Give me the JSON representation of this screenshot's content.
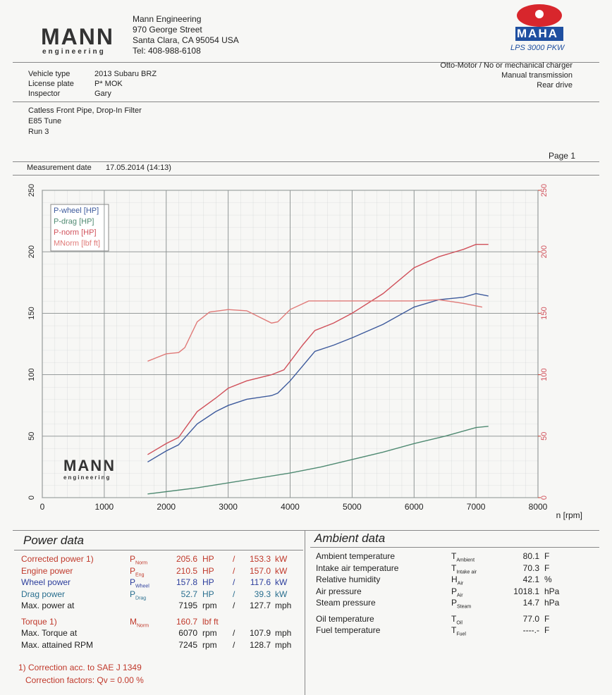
{
  "header": {
    "logo": "MANN",
    "logo_sub": "engineering",
    "company": "Mann Engineering",
    "street": "970 George Street",
    "city": "Santa Clara, CA 95054 USA",
    "phone": "Tel: 408-988-6108",
    "brand": "MAHA",
    "model": "LPS 3000 PKW"
  },
  "vehicle": [
    {
      "label": "Vehicle type",
      "value": "2013 Subaru BRZ"
    },
    {
      "label": "License plate",
      "value": "P* MOK"
    },
    {
      "label": "Inspector",
      "value": "Gary"
    }
  ],
  "drive": [
    "Otto-Motor / No or mechanical charger",
    "Manual transmission",
    "Rear drive"
  ],
  "notes": [
    "Catless Front Pipe, Drop-In Filter",
    "E85 Tune",
    "Run 3"
  ],
  "page": "Page 1",
  "measurement": {
    "label": "Measurement date",
    "date": "17.05.2014 (14:13)"
  },
  "chart_data": {
    "type": "line",
    "x_label": "n [rpm]",
    "xlim": [
      0,
      8000
    ],
    "xticks": [
      0,
      1000,
      2000,
      3000,
      4000,
      5000,
      6000,
      7000,
      8000
    ],
    "ylim": [
      0,
      250
    ],
    "yticks": [
      0,
      50,
      100,
      150,
      200,
      250
    ],
    "y2lim": [
      0,
      250
    ],
    "y2ticks": [
      0,
      50,
      100,
      150,
      200,
      250
    ],
    "grid": true,
    "legend": "upper-left",
    "watermark": {
      "logo": "MANN",
      "sub": "engineering"
    },
    "series": [
      {
        "name": "P-wheel [HP]",
        "color": "#3d5a9c",
        "x": [
          1700,
          2000,
          2200,
          2500,
          2800,
          3000,
          3300,
          3700,
          3800,
          4000,
          4200,
          4400,
          4700,
          5000,
          5500,
          6000,
          6400,
          6800,
          7000,
          7200
        ],
        "values": [
          29,
          38,
          43,
          60,
          70,
          75,
          80,
          83,
          85,
          95,
          107,
          119,
          124,
          130,
          141,
          155,
          161,
          163,
          166,
          164
        ]
      },
      {
        "name": "P-drag [HP]",
        "color": "#4f8a72",
        "x": [
          1700,
          2500,
          3000,
          3500,
          4000,
          4500,
          5000,
          5500,
          6000,
          6500,
          7000,
          7200
        ],
        "values": [
          3,
          8,
          12,
          16,
          20,
          25,
          31,
          37,
          44,
          50,
          57,
          58
        ]
      },
      {
        "name": "P-norm [HP]",
        "color": "#d0505a",
        "x": [
          1700,
          2000,
          2200,
          2500,
          2800,
          3000,
          3300,
          3700,
          3900,
          4200,
          4400,
          4700,
          5000,
          5500,
          6000,
          6400,
          6800,
          7000,
          7200
        ],
        "values": [
          35,
          44,
          49,
          70,
          81,
          89,
          95,
          100,
          104,
          124,
          136,
          142,
          150,
          166,
          187,
          196,
          202,
          206,
          206
        ]
      },
      {
        "name": "MNorm [lbf ft]",
        "color": "#e07a78",
        "axis": "y2",
        "x": [
          1700,
          2000,
          2200,
          2300,
          2500,
          2700,
          3000,
          3300,
          3700,
          3800,
          4000,
          4300,
          4500,
          5000,
          5500,
          6000,
          6400,
          6800,
          7000,
          7100
        ],
        "values": [
          111,
          117,
          118,
          122,
          143,
          151,
          153,
          152,
          142,
          143,
          153,
          160,
          160,
          160,
          160,
          160,
          161,
          158,
          156,
          155
        ]
      }
    ]
  },
  "power_data": {
    "title": "Power data",
    "separator": "/",
    "rows": [
      {
        "label": "Corrected power 1)",
        "color": "#c0392b",
        "symbol": {
          "main": "P",
          "sub": "Norm"
        },
        "value": "205.6",
        "unit": "HP",
        "value2": "153.3",
        "unit2": "kW"
      },
      {
        "label": "Engine power",
        "color": "#c0392b",
        "symbol": {
          "main": "P",
          "sub": "Eng"
        },
        "value": "210.5",
        "unit": "HP",
        "value2": "157.0",
        "unit2": "kW"
      },
      {
        "label": "Wheel power",
        "color": "#2c3e9c",
        "symbol": {
          "main": "P",
          "sub": "Wheel"
        },
        "value": "157.8",
        "unit": "HP",
        "value2": "117.6",
        "unit2": "kW"
      },
      {
        "label": "Drag power",
        "color": "#2a6f8f",
        "symbol": {
          "main": "P",
          "sub": "Drag"
        },
        "value": "52.7",
        "unit": "HP",
        "value2": "39.3",
        "unit2": "kW"
      },
      {
        "label": "Max. power at",
        "color": "#222222",
        "value": "7195",
        "unit": "rpm",
        "value2": "127.7",
        "unit2": "mph"
      },
      {
        "label": "Torque 1)",
        "color": "#c0392b",
        "symbol": {
          "main": "M",
          "sub": "Norm"
        },
        "value": "160.7",
        "unit": "lbf ft"
      },
      {
        "label": "Max. Torque at",
        "color": "#222222",
        "value": "6070",
        "unit": "rpm",
        "value2": "107.9",
        "unit2": "mph"
      },
      {
        "label": "Max. attained RPM",
        "color": "#222222",
        "value": "7245",
        "unit": "rpm",
        "value2": "128.7",
        "unit2": "mph"
      }
    ],
    "footnote": "1) Correction acc. to SAE J 1349",
    "correction": {
      "label": "Correction factors: Qv =",
      "value": "0.00 %"
    }
  },
  "ambient_data": {
    "title": "Ambient data",
    "rows": [
      {
        "label": "Ambient temperature",
        "symbol": {
          "main": "T",
          "sub": "Ambient"
        },
        "value": "80.1",
        "unit": "F"
      },
      {
        "label": "Intake air temperature",
        "symbol": {
          "main": "T",
          "sub": "Intake air"
        },
        "value": "70.3",
        "unit": "F"
      },
      {
        "label": "Relative humidity",
        "symbol": {
          "main": "H",
          "sub": "Air"
        },
        "value": "42.1",
        "unit": "%"
      },
      {
        "label": "Air pressure",
        "symbol": {
          "main": "P",
          "sub": "Air"
        },
        "value": "1018.1",
        "unit": "hPa"
      },
      {
        "label": "Steam pressure",
        "symbol": {
          "main": "P",
          "sub": "Steam"
        },
        "value": "14.7",
        "unit": "hPa"
      },
      {
        "label": "Oil temperature",
        "symbol": {
          "main": "T",
          "sub": "Oil"
        },
        "value": "77.0",
        "unit": "F"
      },
      {
        "label": "Fuel temperature",
        "symbol": {
          "main": "T",
          "sub": "Fuel"
        },
        "value": "----.-",
        "unit": "F"
      }
    ]
  }
}
